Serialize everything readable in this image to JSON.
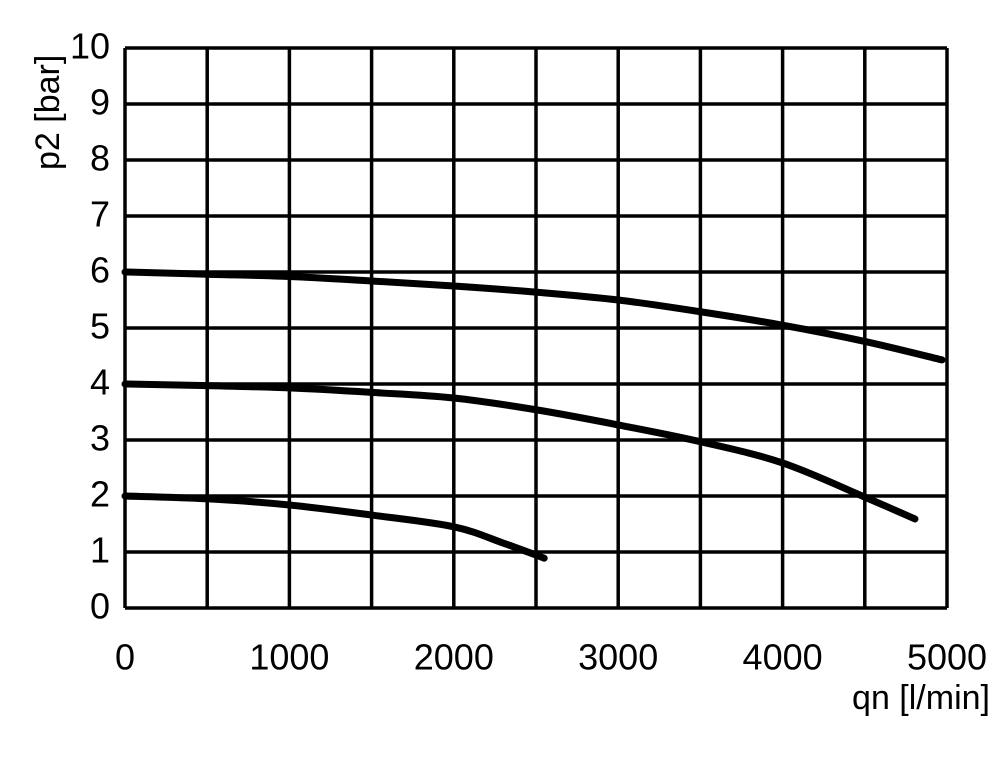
{
  "chart_data": {
    "type": "line",
    "title": "",
    "xlabel": "qn [l/min]",
    "ylabel": "p2 [bar]",
    "xlim": [
      0,
      5000
    ],
    "ylim": [
      0,
      10
    ],
    "x_ticks": [
      0,
      1000,
      2000,
      3000,
      4000,
      5000
    ],
    "y_ticks": [
      0,
      1,
      2,
      3,
      4,
      5,
      6,
      7,
      8,
      9,
      10
    ],
    "x_grid_step": 500,
    "y_grid_step": 1,
    "grid": true,
    "colors": {
      "line": "#000000",
      "grid": "#000000"
    },
    "series": [
      {
        "x": [
          0,
          500,
          1000,
          1500,
          2000,
          2500,
          3000,
          3500,
          4000,
          4500,
          4970
        ],
        "y": [
          6.0,
          5.96,
          5.92,
          5.84,
          5.75,
          5.64,
          5.5,
          5.29,
          5.05,
          4.76,
          4.43
        ]
      },
      {
        "x": [
          0,
          500,
          1000,
          1500,
          2000,
          2500,
          3000,
          3500,
          4000,
          4500,
          4805
        ],
        "y": [
          4.0,
          3.97,
          3.93,
          3.85,
          3.75,
          3.54,
          3.27,
          2.97,
          2.59,
          1.98,
          1.59
        ]
      },
      {
        "x": [
          0,
          500,
          1000,
          1500,
          2000,
          2300,
          2550
        ],
        "y": [
          2.0,
          1.95,
          1.84,
          1.66,
          1.45,
          1.16,
          0.89
        ]
      }
    ]
  }
}
